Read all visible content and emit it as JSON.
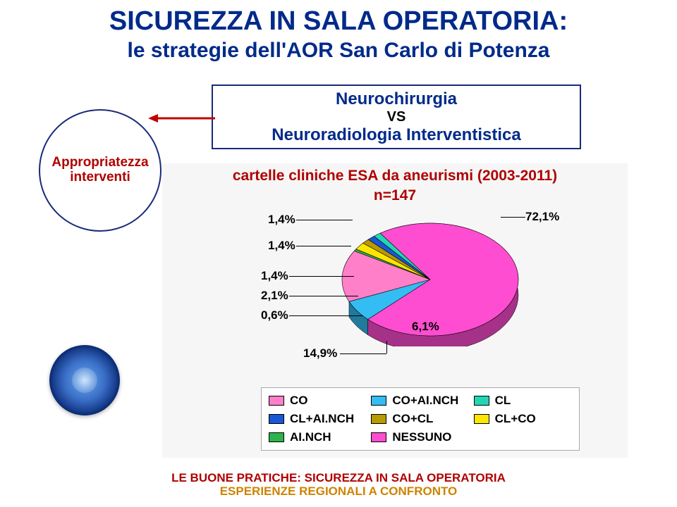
{
  "title_line1": "SICUREZZA IN SALA OPERATORIA:",
  "title_line2": "le strategie dell'AOR San Carlo di Potenza",
  "comparison": {
    "line1": "Neurochirurgia",
    "vs": "VS",
    "line2": "Neuroradiologia Interventistica"
  },
  "circle": {
    "line1": "Appropriatezza",
    "line2": "interventi"
  },
  "chart": {
    "type": "pie",
    "title": "cartelle cliniche ESA da aneurismi (2003-2011)",
    "n_label": "n=147",
    "background_color": "#f6f6f6",
    "title_color": "#b00000",
    "title_fontsize": 21,
    "label_fontsize": 17,
    "slices": [
      {
        "name": "CO+AI.NCH",
        "value": 6.1,
        "label": "6,1%",
        "color": "#33bdf2"
      },
      {
        "name": "CO",
        "value": 14.9,
        "label": "14,9%",
        "color": "#ff7fc9"
      },
      {
        "name": "AI.NCH",
        "value": 0.6,
        "label": "0,6%",
        "color": "#2db34a"
      },
      {
        "name": "CL+CO",
        "value": 2.1,
        "label": "2,1%",
        "color": "#ffe600"
      },
      {
        "name": "CO+CL",
        "value": 1.4,
        "label": "1,4%",
        "color": "#b99a00"
      },
      {
        "name": "CL+AI.NCH",
        "value": 1.4,
        "label": "1,4%",
        "color": "#1a57d6"
      },
      {
        "name": "CL",
        "value": 1.4,
        "label": "1,4%",
        "color": "#22d6b4"
      },
      {
        "name": "NESSUNO",
        "value": 72.1,
        "label": "72,1%",
        "color": "#ff4dd2"
      }
    ],
    "legend_order": [
      "CO",
      "CO+AI.NCH",
      "CL",
      "CL+AI.NCH",
      "CO+CL",
      "CL+CO",
      "AI.NCH",
      "NESSUNO"
    ]
  },
  "footer": {
    "line1": "LE BUONE PRATICHE: SICUREZZA IN SALA OPERATORIA",
    "line2": "ESPERIENZE REGIONALI A CONFRONTO"
  }
}
